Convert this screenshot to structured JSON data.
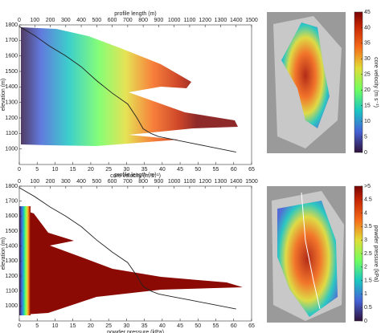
{
  "chart_data": [
    {
      "type": "line",
      "xlabel": "core velocity (m s⁻¹)",
      "x2label": "profile length (m)",
      "ylabel": "elevation (m)",
      "xlim": [
        0,
        65
      ],
      "xticks": [
        0,
        5,
        10,
        15,
        20,
        25,
        30,
        35,
        40,
        45,
        50,
        55,
        60,
        65
      ],
      "x2lim": [
        0,
        1500
      ],
      "x2ticks": [
        0,
        100,
        200,
        300,
        400,
        500,
        600,
        700,
        800,
        900,
        1000,
        1100,
        1200,
        1300,
        1400,
        1500
      ],
      "ylim": [
        900,
        1800
      ],
      "yticks": [
        1000,
        1100,
        1200,
        1300,
        1400,
        1500,
        1600,
        1700,
        1800
      ],
      "line_axis": "x2",
      "color": "#222222",
      "x": [
        0,
        100,
        200,
        300,
        400,
        500,
        600,
        700,
        760,
        800,
        850,
        900,
        1000,
        1100,
        1200,
        1300,
        1400
      ],
      "values": [
        1790,
        1730,
        1660,
        1600,
        1530,
        1440,
        1360,
        1290,
        1200,
        1130,
        1100,
        1080,
        1060,
        1040,
        1020,
        1000,
        980
      ]
    },
    {
      "type": "line",
      "xlabel": "powder pressure (kPa)",
      "x2label": "profile length (m)",
      "ylabel": "elevation (m)",
      "xlim": [
        0,
        65
      ],
      "xticks": [
        0,
        5,
        10,
        15,
        20,
        25,
        30,
        35,
        40,
        45,
        50,
        55,
        60,
        65
      ],
      "x2lim": [
        0,
        1500
      ],
      "x2ticks": [
        0,
        100,
        200,
        300,
        400,
        500,
        600,
        700,
        800,
        900,
        1000,
        1100,
        1200,
        1300,
        1400,
        1500
      ],
      "ylim": [
        900,
        1800
      ],
      "yticks": [
        1000,
        1100,
        1200,
        1300,
        1400,
        1500,
        1600,
        1700,
        1800
      ],
      "line_axis": "x2",
      "color": "#222222",
      "x": [
        0,
        100,
        200,
        300,
        400,
        500,
        600,
        700,
        760,
        800,
        850,
        900,
        1000,
        1100,
        1200,
        1300,
        1400
      ],
      "values": [
        1790,
        1730,
        1660,
        1600,
        1530,
        1440,
        1360,
        1290,
        1200,
        1130,
        1100,
        1080,
        1060,
        1040,
        1020,
        1000,
        980
      ]
    },
    {
      "type": "colorbar",
      "label": "core velocity (m s⁻¹)",
      "lim": [
        0,
        45
      ],
      "ticks": [
        0,
        5,
        10,
        15,
        20,
        25,
        30,
        35,
        40,
        45
      ]
    },
    {
      "type": "colorbar",
      "label": "powder pressure (kPa)",
      "lim": [
        0,
        5
      ],
      "ticks": [
        0,
        0.5,
        1,
        1.5,
        2,
        2.5,
        3,
        3.5,
        4,
        4.5,
        {
          "value": 5,
          "label": ">5"
        }
      ]
    }
  ]
}
